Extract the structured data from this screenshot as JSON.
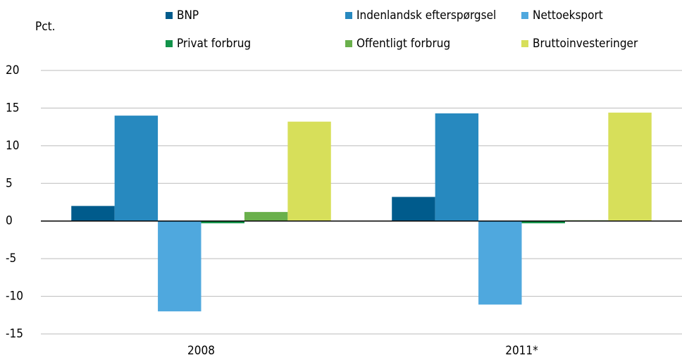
{
  "chart_data": {
    "type": "bar",
    "ylabel": "Pct.",
    "categories": [
      "2008",
      "2011*"
    ],
    "series": [
      {
        "name": "BNP",
        "color": "#005b8c",
        "values": [
          2.0,
          3.2
        ]
      },
      {
        "name": "Indenlandsk efterspørgsel",
        "color": "#2789bf",
        "values": [
          14.0,
          14.3
        ]
      },
      {
        "name": "Nettoeksport",
        "color": "#4fa8de",
        "values": [
          -12.0,
          -11.1
        ]
      },
      {
        "name": "Privat forbrug",
        "color": "#11934a",
        "values": [
          -0.3,
          -0.3
        ]
      },
      {
        "name": "Offentligt forbrug",
        "color": "#6ab04c",
        "values": [
          1.2,
          0.1
        ]
      },
      {
        "name": "Bruttoinvesteringer",
        "color": "#d7df5a",
        "values": [
          13.2,
          14.4
        ]
      }
    ],
    "ylim": [
      -15,
      20
    ],
    "yticks": [
      20,
      15,
      10,
      5,
      0,
      -5,
      -10,
      -15
    ],
    "grid": true
  }
}
